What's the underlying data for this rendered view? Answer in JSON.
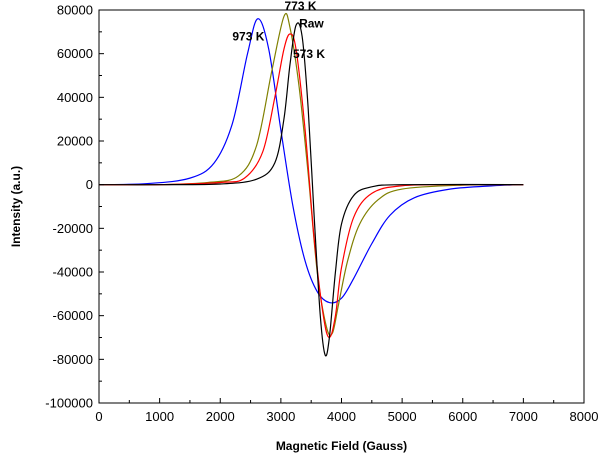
{
  "chart_data": {
    "type": "line",
    "title": "",
    "xlabel": "Magnetic Field (Gauss)",
    "ylabel": "Intensity (a.u.)",
    "xlim": [
      0,
      8000
    ],
    "ylim": [
      -100000,
      80000
    ],
    "x_ticks": [
      0,
      1000,
      2000,
      3000,
      4000,
      5000,
      6000,
      7000,
      8000
    ],
    "y_ticks": [
      80000,
      60000,
      40000,
      20000,
      0,
      -20000,
      -40000,
      -60000,
      -80000,
      -100000
    ],
    "grid": false,
    "legend": "none",
    "series": [
      {
        "name": "Raw",
        "color": "#000000",
        "points": [
          [
            0,
            0
          ],
          [
            1000,
            0
          ],
          [
            2000,
            300
          ],
          [
            2600,
            2500
          ],
          [
            2900,
            10000
          ],
          [
            3050,
            30000
          ],
          [
            3150,
            55000
          ],
          [
            3250,
            73000
          ],
          [
            3350,
            68000
          ],
          [
            3450,
            35000
          ],
          [
            3550,
            -15000
          ],
          [
            3650,
            -60000
          ],
          [
            3730,
            -78000
          ],
          [
            3800,
            -70000
          ],
          [
            3900,
            -40000
          ],
          [
            4000,
            -18000
          ],
          [
            4200,
            -5000
          ],
          [
            4500,
            -1000
          ],
          [
            5000,
            0
          ],
          [
            7000,
            0
          ]
        ]
      },
      {
        "name": "573 K",
        "color": "#ff0000",
        "points": [
          [
            0,
            0
          ],
          [
            1000,
            0
          ],
          [
            2000,
            1000
          ],
          [
            2400,
            3000
          ],
          [
            2700,
            15000
          ],
          [
            2900,
            40000
          ],
          [
            3050,
            62000
          ],
          [
            3150,
            69000
          ],
          [
            3250,
            62000
          ],
          [
            3400,
            25000
          ],
          [
            3550,
            -25000
          ],
          [
            3700,
            -60000
          ],
          [
            3800,
            -70000
          ],
          [
            3900,
            -60000
          ],
          [
            4000,
            -38000
          ],
          [
            4200,
            -15000
          ],
          [
            4500,
            -4000
          ],
          [
            5000,
            -500
          ],
          [
            6000,
            0
          ],
          [
            7000,
            0
          ]
        ]
      },
      {
        "name": "773 K",
        "color": "#808000",
        "points": [
          [
            0,
            0
          ],
          [
            1000,
            0
          ],
          [
            1800,
            1000
          ],
          [
            2300,
            4000
          ],
          [
            2600,
            18000
          ],
          [
            2850,
            52000
          ],
          [
            3050,
            77000
          ],
          [
            3150,
            72000
          ],
          [
            3300,
            45000
          ],
          [
            3450,
            5000
          ],
          [
            3600,
            -40000
          ],
          [
            3750,
            -65000
          ],
          [
            3850,
            -68000
          ],
          [
            3950,
            -55000
          ],
          [
            4100,
            -35000
          ],
          [
            4300,
            -18000
          ],
          [
            4600,
            -7000
          ],
          [
            5000,
            -2000
          ],
          [
            6000,
            -200
          ],
          [
            7000,
            0
          ]
        ]
      },
      {
        "name": "973 K",
        "color": "#0000ff",
        "points": [
          [
            0,
            0
          ],
          [
            800,
            500
          ],
          [
            1500,
            3000
          ],
          [
            1900,
            10000
          ],
          [
            2200,
            28000
          ],
          [
            2450,
            60000
          ],
          [
            2620,
            76000
          ],
          [
            2800,
            62000
          ],
          [
            3000,
            25000
          ],
          [
            3200,
            -10000
          ],
          [
            3400,
            -35000
          ],
          [
            3600,
            -49000
          ],
          [
            3800,
            -54000
          ],
          [
            4000,
            -52000
          ],
          [
            4200,
            -43000
          ],
          [
            4500,
            -27000
          ],
          [
            4800,
            -14000
          ],
          [
            5200,
            -6000
          ],
          [
            5800,
            -2000
          ],
          [
            6500,
            -500
          ],
          [
            7000,
            0
          ]
        ]
      }
    ],
    "annotations": [
      {
        "text": "773 K",
        "x": 3060,
        "y": 80000
      },
      {
        "text": "973 K",
        "x": 2200,
        "y": 66000
      },
      {
        "text": "Raw",
        "x": 3300,
        "y": 72000
      },
      {
        "text": "573 K",
        "x": 3200,
        "y": 58000
      }
    ]
  }
}
